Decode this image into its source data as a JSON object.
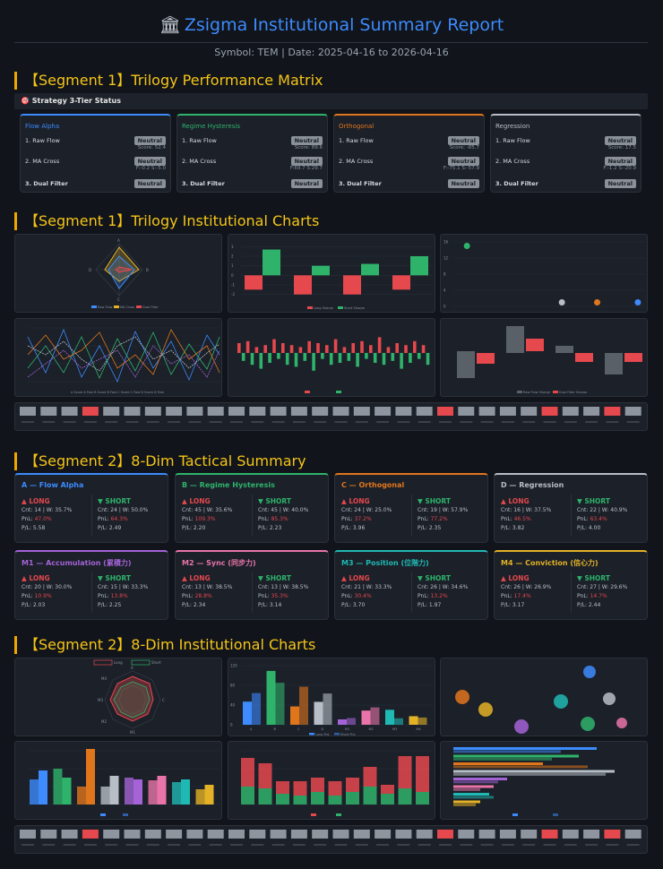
{
  "header": {
    "title": "Zsigma Institutional Summary Report",
    "subtitle": "Symbol: TEM | Date: 2025-04-16 to 2026-04-16"
  },
  "sections": {
    "s1a": "【Segment 1】Trilogy Performance Matrix",
    "s1b": "【Segment 1】Trilogy Institutional Charts",
    "s2a": "【Segment 2】8-Dim Tactical Summary",
    "s2b": "【Segment 2】8-Dim Institutional Charts"
  },
  "status_bar": "🎯 Strategy 3-Tier Status",
  "colors": {
    "blue": "#3d8bfd",
    "green": "#2fb36b",
    "orange": "#e0761c",
    "silver": "#b8bec6",
    "purple": "#a463d6",
    "pink": "#e874a9",
    "teal": "#20b8b3",
    "gold": "#e3b226",
    "red": "#e5484d"
  },
  "matrix": [
    {
      "name": "Flow Alpha",
      "color": "#3d8bfd",
      "r1": "1. Raw Flow",
      "b1": "Neutral",
      "d1": "Score: 52.4",
      "r2": "2. MA Cross",
      "b2": "Neutral",
      "d2": "F:-0.2 S:-5.0",
      "r3": "3. Dual Filter",
      "b3": "Neutral"
    },
    {
      "name": "Regime Hysteresis",
      "color": "#2fb36b",
      "r1": "1. Raw Flow",
      "b1": "Neutral",
      "d1": "Score: 89.6",
      "r2": "2. MA Cross",
      "b2": "Neutral",
      "d2": "F:69.7 S:29.7",
      "r3": "3. Dual Filter",
      "b3": "Neutral"
    },
    {
      "name": "Orthogonal",
      "color": "#e0761c",
      "r1": "1. Raw Flow",
      "b1": "Neutral",
      "d1": "Score: -85.7",
      "r2": "2. MA Cross",
      "b2": "Neutral",
      "d2": "F:-75.1 S:-57.9",
      "r3": "3. Dual Filter",
      "b3": "Neutral"
    },
    {
      "name": "Regression",
      "color": "#b8bec6",
      "r1": "1. Raw Flow",
      "b1": "Neutral",
      "d1": "Score: 17.5",
      "r2": "2. MA Cross",
      "b2": "Neutral",
      "d2": "F:-1.2 S:-20.9",
      "r3": "3. Dual Filter",
      "b3": "Neutral"
    }
  ],
  "tactical": [
    {
      "name": "A — Flow Alpha",
      "color": "#3d8bfd",
      "long": "▲ LONG",
      "l1": "Cnt: 14 | W: 35.7%",
      "l2": "47.0%",
      "l3": "P/L: 5.58",
      "short": "▼ SHORT",
      "s1": "Cnt: 24 | W: 50.0%",
      "s2": "64.3%",
      "s3": "P/L: 2.49"
    },
    {
      "name": "B — Regime Hysteresis",
      "color": "#2fb36b",
      "long": "▲ LONG",
      "l1": "Cnt: 45 | W: 35.6%",
      "l2": "109.3%",
      "l3": "P/L: 2.20",
      "short": "▼ SHORT",
      "s1": "Cnt: 45 | W: 40.0%",
      "s2": "85.3%",
      "s3": "P/L: 2.23"
    },
    {
      "name": "C — Orthogonal",
      "color": "#e0761c",
      "long": "▲ LONG",
      "l1": "Cnt: 24 | W: 25.0%",
      "l2": "37.2%",
      "l3": "P/L: 3.96",
      "short": "▼ SHORT",
      "s1": "Cnt: 19 | W: 57.9%",
      "s2": "77.2%",
      "s3": "P/L: 2.35"
    },
    {
      "name": "D — Regression",
      "color": "#b8bec6",
      "long": "▲ LONG",
      "l1": "Cnt: 16 | W: 37.5%",
      "l2": "46.5%",
      "l3": "P/L: 3.82",
      "short": "▼ SHORT",
      "s1": "Cnt: 22 | W: 40.9%",
      "s2": "63.4%",
      "s3": "P/L: 4.00"
    },
    {
      "name": "M1 — Accumulation (累積力)",
      "color": "#a463d6",
      "long": "▲ LONG",
      "l1": "Cnt: 20 | W: 30.0%",
      "l2": "10.9%",
      "l3": "P/L: 2.03",
      "short": "▼ SHORT",
      "s1": "Cnt: 15 | W: 33.3%",
      "s2": "13.8%",
      "s3": "P/L: 2.25"
    },
    {
      "name": "M2 — Sync (同步力)",
      "color": "#e874a9",
      "long": "▲ LONG",
      "l1": "Cnt: 13 | W: 38.5%",
      "l2": "28.8%",
      "l3": "P/L: 2.34",
      "short": "▼ SHORT",
      "s1": "Cnt: 13 | W: 38.5%",
      "s2": "35.3%",
      "s3": "P/L: 3.14"
    },
    {
      "name": "M3 — Position (位階力)",
      "color": "#20b8b3",
      "long": "▲ LONG",
      "l1": "Cnt: 21 | W: 33.3%",
      "l2": "30.4%",
      "l3": "P/L: 3.70",
      "short": "▼ SHORT",
      "s1": "Cnt: 26 | W: 34.6%",
      "s2": "13.2%",
      "s3": "P/L: 1.97"
    },
    {
      "name": "M4 — Conviction (信心力)",
      "color": "#e3b226",
      "long": "▲ LONG",
      "l1": "Cnt: 26 | W: 26.9%",
      "l2": "17.4%",
      "l3": "P/L: 3.17",
      "short": "▼ SHORT",
      "s1": "Cnt: 27 | W: 29.6%",
      "s2": "14.7%",
      "s3": "P/L: 2.44"
    }
  ],
  "pnl_label": "PnL: ",
  "chart_data": [
    {
      "type": "bar",
      "title": "Trilogy Long/Short Sharpe",
      "series": [
        {
          "name": "Long Sharpe",
          "values": [
            -1.5,
            -2.0,
            -2.0,
            -1.5
          ]
        },
        {
          "name": "Short Sharpe",
          "values": [
            2.7,
            1.0,
            1.2,
            2.0
          ]
        }
      ],
      "categories": [
        "A",
        "B",
        "C",
        "D"
      ],
      "ylim": [
        -2.5,
        3.5
      ]
    },
    {
      "type": "scatter",
      "title": "Trilogy Strategy Scatter",
      "series": [
        {
          "name": "Strategies",
          "values": [
            [
              5,
              15
            ],
            [
              40,
              1
            ],
            [
              53,
              1
            ],
            [
              68,
              1
            ]
          ]
        }
      ],
      "xlim": [
        0,
        70
      ],
      "ylim": [
        0,
        16
      ]
    },
    {
      "type": "bar",
      "title": "8-Dim Long/Short PnL",
      "categories": [
        "A",
        "B",
        "C",
        "D",
        "M1",
        "M2",
        "M3",
        "M4"
      ],
      "series": [
        {
          "name": "Long PnL",
          "values": [
            47.0,
            109.3,
            37.2,
            46.5,
            10.9,
            28.8,
            30.4,
            17.4
          ]
        },
        {
          "name": "Short PnL",
          "values": [
            64.3,
            85.3,
            77.2,
            63.4,
            13.8,
            35.3,
            13.2,
            14.7
          ]
        }
      ],
      "ylim": [
        0,
        120
      ]
    }
  ]
}
